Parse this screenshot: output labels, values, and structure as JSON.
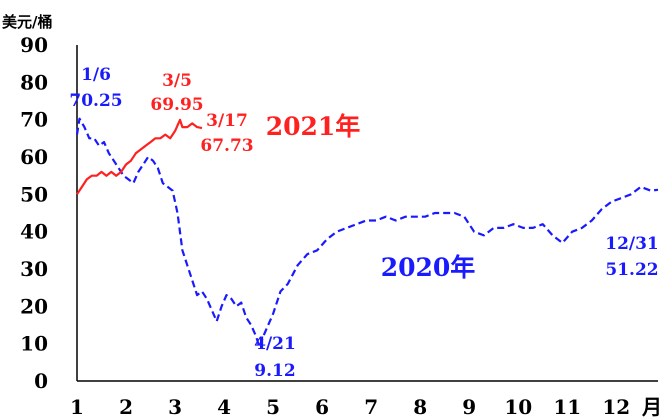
{
  "chart_data": {
    "type": "line",
    "ylabel": "美元/桶",
    "ylim": [
      0,
      90
    ],
    "xlim": [
      1,
      12.85
    ],
    "yticks": [
      "0",
      "10",
      "20",
      "30",
      "40",
      "50",
      "60",
      "70",
      "80",
      "90"
    ],
    "xticks": [
      "1",
      "2",
      "3",
      "4",
      "5",
      "6",
      "7",
      "8",
      "9",
      "10",
      "11",
      "12"
    ],
    "xunit": "月",
    "grid": false,
    "colors": {
      "s2020": "#1a1aff",
      "s2021": "#ff2020"
    },
    "series": [
      {
        "name": "2020年",
        "style": "dashed",
        "color": "#1a1aff",
        "x": [
          1.0,
          1.05,
          1.15,
          1.25,
          1.35,
          1.45,
          1.55,
          1.65,
          1.75,
          1.85,
          1.95,
          2.05,
          2.15,
          2.25,
          2.35,
          2.45,
          2.55,
          2.65,
          2.75,
          2.85,
          2.95,
          3.05,
          3.15,
          3.25,
          3.35,
          3.45,
          3.55,
          3.65,
          3.75,
          3.85,
          3.95,
          4.05,
          4.15,
          4.25,
          4.35,
          4.45,
          4.55,
          4.65,
          4.72,
          4.8,
          4.9,
          5.0,
          5.15,
          5.3,
          5.5,
          5.7,
          5.9,
          6.1,
          6.3,
          6.5,
          6.7,
          6.9,
          7.1,
          7.3,
          7.5,
          7.7,
          7.9,
          8.1,
          8.3,
          8.5,
          8.7,
          8.9,
          9.1,
          9.3,
          9.5,
          9.7,
          9.9,
          10.1,
          10.3,
          10.5,
          10.7,
          10.9,
          11.1,
          11.3,
          11.5,
          11.7,
          11.9,
          12.1,
          12.3,
          12.5,
          12.7,
          12.85
        ],
        "values": [
          66,
          70.25,
          68,
          65,
          65,
          63,
          64,
          61,
          59,
          57,
          55,
          54,
          53,
          56,
          58,
          60,
          59,
          57,
          53,
          52,
          51,
          45,
          35,
          31,
          27,
          23,
          24,
          22,
          19,
          16,
          20,
          23,
          22,
          20,
          21,
          17,
          15,
          12,
          9.12,
          12,
          15,
          18,
          24,
          26,
          31,
          34,
          35,
          38,
          40,
          41,
          42,
          43,
          43,
          44,
          43,
          44,
          44,
          44,
          45,
          45,
          45,
          44,
          40,
          39,
          41,
          41,
          42,
          41,
          41,
          42,
          39,
          37,
          40,
          41,
          43,
          46,
          48,
          49,
          50,
          52,
          51,
          51.22
        ]
      },
      {
        "name": "2021年",
        "style": "solid",
        "color": "#ff2020",
        "x": [
          1.0,
          1.1,
          1.2,
          1.3,
          1.4,
          1.5,
          1.6,
          1.7,
          1.8,
          1.9,
          2.0,
          2.1,
          2.2,
          2.3,
          2.4,
          2.5,
          2.6,
          2.7,
          2.8,
          2.9,
          3.0,
          3.1,
          3.15,
          3.25,
          3.35,
          3.45,
          3.55
        ],
        "values": [
          50,
          52,
          54,
          55,
          55,
          56,
          55,
          56,
          55,
          56,
          58,
          59,
          61,
          62,
          63,
          64,
          65,
          65,
          66,
          65,
          67,
          69.95,
          68,
          68,
          69,
          68,
          67.73
        ]
      }
    ],
    "annotations": [
      {
        "date": "1/6",
        "value": "70.25",
        "color": "#1a1aff"
      },
      {
        "date": "3/5",
        "value": "69.95",
        "color": "#ff2020"
      },
      {
        "date": "3/17",
        "value": "67.73",
        "color": "#ff2020"
      },
      {
        "date": "4/21",
        "value": "9.12",
        "color": "#1a1aff"
      },
      {
        "date": "12/31",
        "value": "51.22",
        "color": "#1a1aff"
      }
    ],
    "series_labels": [
      {
        "text": "2021年",
        "color": "#ff2020"
      },
      {
        "text": "2020年",
        "color": "#1a1aff"
      }
    ]
  }
}
